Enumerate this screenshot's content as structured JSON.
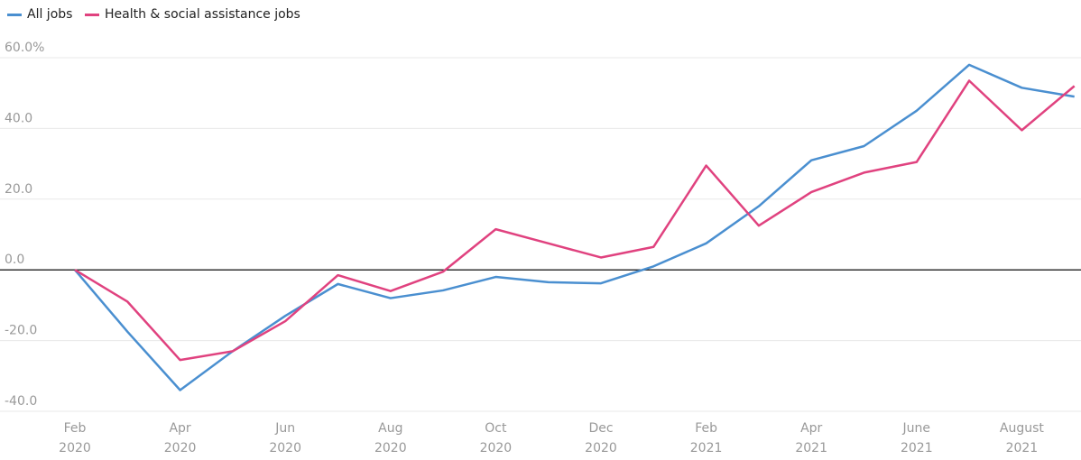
{
  "chart_data": {
    "type": "line",
    "categories": [
      "Feb 2020",
      null,
      "Apr 2020",
      null,
      "Jun 2020",
      null,
      "Aug 2020",
      null,
      "Oct 2020",
      null,
      "Dec 2020",
      null,
      "Feb 2021",
      null,
      "Apr 2021",
      null,
      "June 2021",
      null,
      "August 2021",
      null
    ],
    "series": [
      {
        "name": "All jobs",
        "color": "#4a8fd0",
        "values": [
          0,
          -17.5,
          -34,
          -23,
          -13,
          -4,
          -8,
          -5.8,
          -2,
          -3.5,
          -3.8,
          1,
          7.5,
          18,
          31,
          35,
          45,
          58,
          51.5,
          49
        ]
      },
      {
        "name": "Health & social assistance jobs",
        "color": "#e0427f",
        "values": [
          0,
          -9,
          -25.5,
          -23,
          -14.5,
          -1.5,
          -6,
          -0.5,
          11.5,
          7.5,
          3.5,
          6.5,
          29.5,
          12.5,
          22,
          27.5,
          30.5,
          53.5,
          39.5,
          52
        ]
      }
    ],
    "ylim": [
      -40,
      60
    ],
    "yticks": [
      {
        "value": 60,
        "label": "60.0%"
      },
      {
        "value": 40,
        "label": "40.0"
      },
      {
        "value": 20,
        "label": "20.0"
      },
      {
        "value": 0,
        "label": "0.0"
      },
      {
        "value": -20,
        "label": "-20.0"
      },
      {
        "value": -40,
        "label": "-40.0"
      }
    ],
    "grid": true,
    "legend": "top-left"
  }
}
